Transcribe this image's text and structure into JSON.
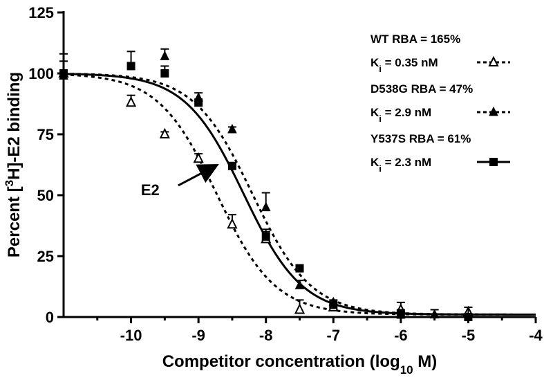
{
  "chart_data": {
    "type": "scatter",
    "title": "",
    "xlabel": "Competitor concentration (log",
    "xlabel_sub": "10",
    "xlabel_tail": " M)",
    "ylabel_pre": "Percent [",
    "ylabel_sup": "3",
    "ylabel_post": "H]-E2 binding",
    "xlim": [
      -11,
      -4
    ],
    "ylim": [
      0,
      125
    ],
    "x_ticks": [
      -10,
      -9,
      -8,
      -7,
      -6,
      -5,
      -4
    ],
    "x_tick_labels": [
      "-10",
      "-9",
      "-8",
      "-7",
      "-6",
      "-5",
      "-4"
    ],
    "y_ticks": [
      0,
      25,
      50,
      75,
      100,
      125
    ],
    "y_tick_labels": [
      "0",
      "25",
      "50",
      "75",
      "100",
      "125"
    ],
    "legend_position": "top-right",
    "series": [
      {
        "key": "wt",
        "title_line": "WT RBA = 165%",
        "ki_prefix": "K",
        "ki_sub": "i",
        "ki_rest": " = 0.35 nM",
        "marker": "triangle-open",
        "line_style": "dotted",
        "color": "#000000",
        "curve": {
          "top": 100,
          "bottom": 1,
          "log_ic50": -8.73,
          "hill": 1.0
        },
        "points": [
          {
            "x": -11,
            "y": 100,
            "err": 5
          },
          {
            "x": -10,
            "y": 88,
            "err": 3
          },
          {
            "x": -9.5,
            "y": 75,
            "err": 1
          },
          {
            "x": -9,
            "y": 65,
            "err": 2
          },
          {
            "x": -8.5,
            "y": 38,
            "err": 4
          },
          {
            "x": -8,
            "y": 32,
            "err": 3
          },
          {
            "x": -7.5,
            "y": 3,
            "err": 4
          },
          {
            "x": -7,
            "y": 4,
            "err": 1
          },
          {
            "x": -6,
            "y": 3,
            "err": 3
          },
          {
            "x": -5,
            "y": 2,
            "err": 2
          }
        ]
      },
      {
        "key": "d538g",
        "title_line": "D538G RBA = 47%",
        "ki_prefix": "K",
        "ki_sub": "i",
        "ki_rest": " = 2.9 nM",
        "marker": "triangle-filled",
        "line_style": "dotted",
        "color": "#000000",
        "curve": {
          "top": 100,
          "bottom": 1,
          "log_ic50": -8.2,
          "hill": 1.0
        },
        "points": [
          {
            "x": -11,
            "y": 99,
            "err": 6
          },
          {
            "x": -9.5,
            "y": 107,
            "err": 3
          },
          {
            "x": -9,
            "y": 90,
            "err": 2
          },
          {
            "x": -8.5,
            "y": 77,
            "err": 1
          },
          {
            "x": -8,
            "y": 45,
            "err": 6
          },
          {
            "x": -7.5,
            "y": 13,
            "err": 2
          },
          {
            "x": -7,
            "y": 6,
            "err": 1
          },
          {
            "x": -6,
            "y": 1,
            "err": 2
          },
          {
            "x": -5.5,
            "y": 1,
            "err": 2
          }
        ]
      },
      {
        "key": "y537s",
        "title_line": "Y537S RBA = 61%",
        "ki_prefix": "K",
        "ki_sub": "i",
        "ki_rest": " = 2.3 nM",
        "marker": "square-filled",
        "line_style": "solid",
        "color": "#000000",
        "curve": {
          "top": 100,
          "bottom": 1,
          "log_ic50": -8.33,
          "hill": 1.0
        },
        "points": [
          {
            "x": -11,
            "y": 100,
            "err": 8
          },
          {
            "x": -10,
            "y": 103,
            "err": 6
          },
          {
            "x": -9.5,
            "y": 100,
            "err": 3
          },
          {
            "x": -9,
            "y": 88,
            "err": 1
          },
          {
            "x": -8.5,
            "y": 62,
            "err": 1
          },
          {
            "x": -8,
            "y": 33,
            "err": 3
          },
          {
            "x": -7.5,
            "y": 20,
            "err": 1
          },
          {
            "x": -7,
            "y": 5,
            "err": 1
          },
          {
            "x": -6,
            "y": 1,
            "err": 1
          },
          {
            "x": -5,
            "y": 0,
            "err": 4
          }
        ]
      }
    ],
    "annotations": [
      {
        "text": "E2",
        "arrow_from": {
          "x": -9.3,
          "y": 54
        },
        "arrow_to": {
          "x": -8.75,
          "y": 62
        }
      }
    ]
  }
}
